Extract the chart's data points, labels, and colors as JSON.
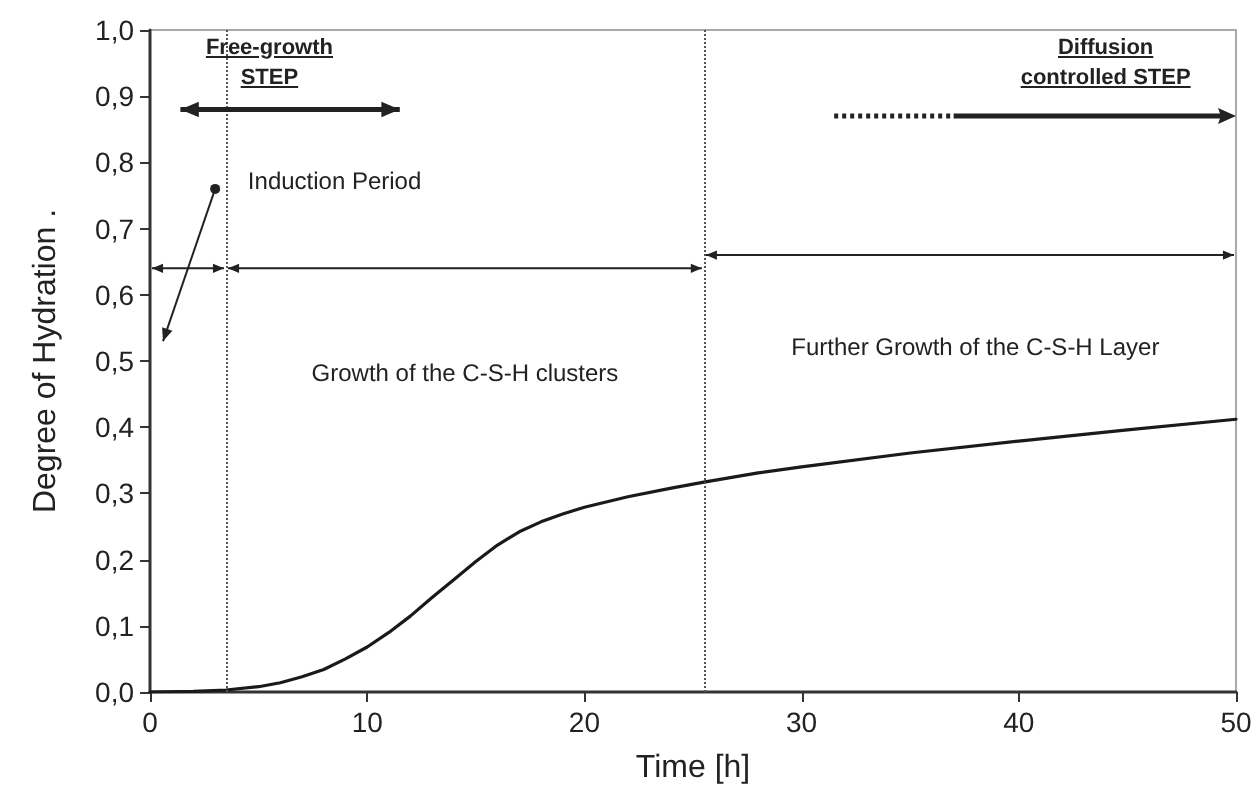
{
  "chart_data": {
    "type": "line",
    "xlabel": "Time [h]",
    "ylabel": "Degree of Hydration .",
    "x": [
      0,
      2,
      3.5,
      5,
      6,
      7,
      8,
      9,
      10,
      11,
      12,
      13,
      14,
      15,
      16,
      17,
      18,
      19,
      20,
      22,
      24,
      25.5,
      28,
      30,
      35,
      40,
      45,
      50
    ],
    "series": [
      {
        "color": "#1a1a1a",
        "values": [
          0,
          0.001,
          0.003,
          0.008,
          0.014,
          0.023,
          0.034,
          0.05,
          0.068,
          0.09,
          0.115,
          0.143,
          0.17,
          0.197,
          0.222,
          0.242,
          0.257,
          0.269,
          0.279,
          0.295,
          0.308,
          0.317,
          0.331,
          0.34,
          0.361,
          0.379,
          0.396,
          0.412
        ]
      }
    ],
    "xlim": [
      0,
      50
    ],
    "xticks": [
      0,
      10,
      20,
      30,
      40,
      50
    ],
    "ylim": [
      0,
      1
    ],
    "yticks": [
      {
        "value": 0,
        "label": "0,0"
      },
      {
        "value": 0.1,
        "label": "0,1"
      },
      {
        "value": 0.2,
        "label": "0,2"
      },
      {
        "value": 0.3,
        "label": "0,3"
      },
      {
        "value": 0.4,
        "label": "0,4"
      },
      {
        "value": 0.5,
        "label": "0,5"
      },
      {
        "value": 0.6,
        "label": "0,6"
      },
      {
        "value": 0.7,
        "label": "0,7"
      },
      {
        "value": 0.8,
        "label": "0,8"
      },
      {
        "value": 0.9,
        "label": "0,9"
      },
      {
        "value": 1,
        "label": "1,0"
      }
    ],
    "ref_lines": [
      {
        "axis": "x",
        "value": 3.5,
        "color": "#555555",
        "line_style": "dotted"
      },
      {
        "axis": "x",
        "value": 25.5,
        "color": "#555555",
        "line_style": "dotted"
      }
    ],
    "annotations": [
      "Free-growth\nSTEP",
      "Diffusion\ncontrolled STEP",
      "Induction Period",
      "Growth of the C-S-H clusters",
      "Further Growth of the C-S-H Layer"
    ],
    "grid": false,
    "marker": "none",
    "line_style": "solid"
  }
}
